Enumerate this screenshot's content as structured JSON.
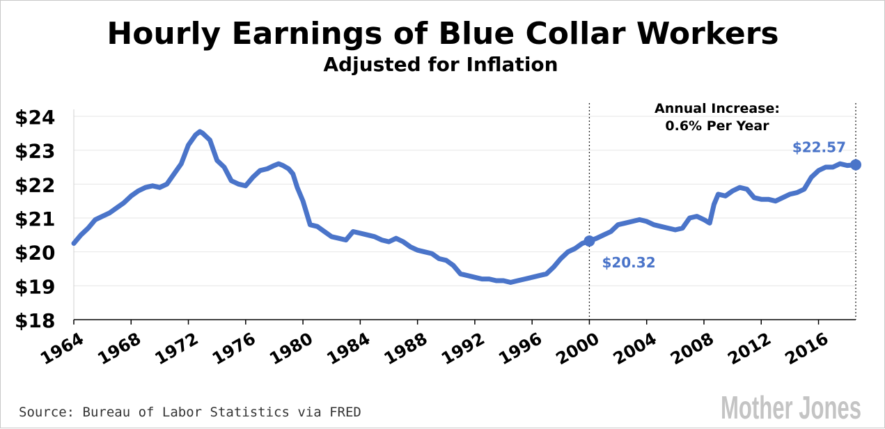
{
  "chart_data": {
    "type": "line",
    "title": "Hourly Earnings of Blue Collar Workers",
    "subtitle": "Adjusted for Inflation",
    "xlabel": "",
    "ylabel": "",
    "xlim": [
      1964,
      2018.6
    ],
    "ylim": [
      18,
      24
    ],
    "y_ticks": [
      18,
      19,
      20,
      21,
      22,
      23,
      24
    ],
    "y_tick_labels": [
      "$18",
      "$19",
      "$20",
      "$21",
      "$22",
      "$23",
      "$24"
    ],
    "x_ticks": [
      1964,
      1968,
      1972,
      1976,
      1980,
      1984,
      1988,
      1992,
      1996,
      2000,
      2004,
      2008,
      2012,
      2016
    ],
    "x_tick_labels": [
      "1964",
      "1968",
      "1972",
      "1976",
      "1980",
      "1984",
      "1988",
      "1992",
      "1996",
      "2000",
      "2004",
      "2008",
      "2012",
      "2016"
    ],
    "grid": true,
    "color": "#4a74c9",
    "series": [
      {
        "name": "Hourly earnings",
        "x": [
          1964.0,
          1964.5,
          1965.0,
          1965.5,
          1966.0,
          1966.5,
          1967.0,
          1967.5,
          1968.0,
          1968.5,
          1969.0,
          1969.5,
          1970.0,
          1970.5,
          1971.0,
          1971.5,
          1972.0,
          1972.5,
          1972.8,
          1973.0,
          1973.5,
          1974.0,
          1974.5,
          1975.0,
          1975.5,
          1976.0,
          1976.5,
          1977.0,
          1977.5,
          1978.0,
          1978.3,
          1978.6,
          1979.0,
          1979.3,
          1979.6,
          1980.0,
          1980.5,
          1981.0,
          1981.5,
          1982.0,
          1982.5,
          1983.0,
          1983.5,
          1984.0,
          1984.5,
          1985.0,
          1985.5,
          1986.0,
          1986.5,
          1987.0,
          1987.5,
          1988.0,
          1988.5,
          1989.0,
          1989.5,
          1990.0,
          1990.5,
          1991.0,
          1991.5,
          1992.0,
          1992.5,
          1993.0,
          1993.5,
          1994.0,
          1994.5,
          1995.0,
          1995.5,
          1996.0,
          1996.5,
          1997.0,
          1997.5,
          1998.0,
          1998.5,
          1999.0,
          1999.5,
          2000.0,
          2000.5,
          2001.0,
          2001.5,
          2002.0,
          2002.5,
          2003.0,
          2003.5,
          2004.0,
          2004.5,
          2005.0,
          2005.5,
          2006.0,
          2006.5,
          2007.0,
          2007.5,
          2008.0,
          2008.4,
          2008.7,
          2009.0,
          2009.5,
          2010.0,
          2010.5,
          2011.0,
          2011.5,
          2012.0,
          2012.5,
          2013.0,
          2013.5,
          2014.0,
          2014.5,
          2015.0,
          2015.5,
          2016.0,
          2016.5,
          2017.0,
          2017.5,
          2018.0,
          2018.6
        ],
        "values": [
          20.25,
          20.5,
          20.7,
          20.95,
          21.05,
          21.15,
          21.3,
          21.45,
          21.65,
          21.8,
          21.9,
          21.95,
          21.9,
          22.0,
          22.3,
          22.6,
          23.15,
          23.45,
          23.55,
          23.5,
          23.3,
          22.7,
          22.5,
          22.1,
          22.0,
          21.95,
          22.2,
          22.4,
          22.45,
          22.55,
          22.6,
          22.55,
          22.45,
          22.3,
          21.9,
          21.5,
          20.8,
          20.75,
          20.6,
          20.45,
          20.4,
          20.35,
          20.6,
          20.55,
          20.5,
          20.45,
          20.35,
          20.3,
          20.4,
          20.3,
          20.15,
          20.05,
          20.0,
          19.95,
          19.8,
          19.75,
          19.6,
          19.35,
          19.3,
          19.25,
          19.2,
          19.2,
          19.15,
          19.15,
          19.1,
          19.15,
          19.2,
          19.25,
          19.3,
          19.35,
          19.55,
          19.8,
          20.0,
          20.1,
          20.25,
          20.32,
          20.4,
          20.5,
          20.6,
          20.8,
          20.85,
          20.9,
          20.95,
          20.9,
          20.8,
          20.75,
          20.7,
          20.65,
          20.7,
          21.0,
          21.05,
          20.95,
          20.85,
          21.4,
          21.7,
          21.65,
          21.8,
          21.9,
          21.85,
          21.6,
          21.55,
          21.55,
          21.5,
          21.6,
          21.7,
          21.75,
          21.85,
          22.2,
          22.4,
          22.5,
          22.5,
          22.6,
          22.55,
          22.57
        ]
      }
    ],
    "reference_lines": [
      2000,
      2018.6
    ],
    "annotations": {
      "increase_line1": "Annual Increase:",
      "increase_line2": "0.6% Per Year",
      "start_label": "$20.32",
      "end_label": "$22.57",
      "start_x": 2000,
      "start_y": 20.32,
      "end_x": 2018.6,
      "end_y": 22.57
    }
  },
  "source": "Source: Bureau of Labor Statistics via FRED",
  "brand": "Mother Jones"
}
